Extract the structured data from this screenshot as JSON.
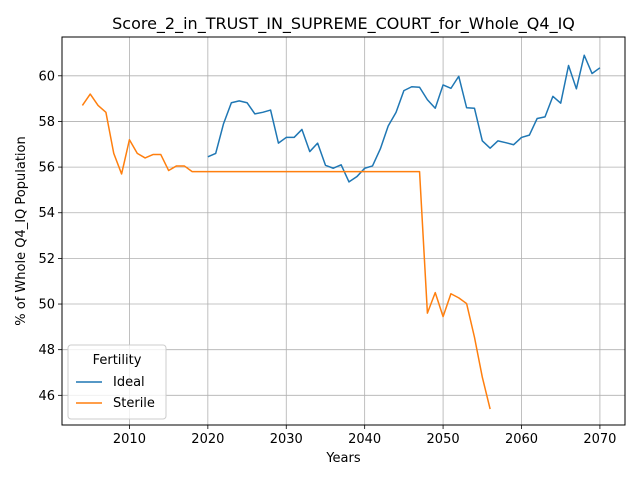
{
  "chart_data": {
    "type": "line",
    "title": "Score_2_in_TRUST_IN_SUPREME_COURT_for_Whole_Q4_IQ",
    "xlabel": "Years",
    "ylabel": "% of Whole Q4_IQ Population",
    "xlim": [
      2001.4,
      2073.2
    ],
    "ylim": [
      44.7,
      61.7
    ],
    "xticks": [
      2010,
      2020,
      2030,
      2040,
      2050,
      2060,
      2070
    ],
    "yticks": [
      46,
      48,
      50,
      52,
      54,
      56,
      58,
      60
    ],
    "grid": true,
    "legend": {
      "title": "Fertility",
      "placement": "lower-left"
    },
    "series": [
      {
        "name": "Ideal",
        "color": "#1f77b4",
        "x": [
          2020,
          2021,
          2022,
          2023,
          2024,
          2025,
          2026,
          2027,
          2028,
          2029,
          2030,
          2031,
          2032,
          2033,
          2034,
          2035,
          2036,
          2037,
          2038,
          2039,
          2040,
          2041,
          2042,
          2043,
          2044,
          2045,
          2046,
          2047,
          2048,
          2049,
          2050,
          2051,
          2052,
          2053,
          2054,
          2055,
          2056,
          2057,
          2058,
          2059,
          2060,
          2061,
          2062,
          2063,
          2064,
          2065,
          2066,
          2067,
          2068,
          2069,
          2070
        ],
        "y": [
          56.45,
          56.6,
          57.9,
          58.82,
          58.9,
          58.82,
          58.33,
          58.4,
          58.5,
          57.05,
          57.3,
          57.3,
          57.65,
          56.68,
          57.05,
          56.08,
          55.95,
          56.1,
          55.35,
          55.58,
          55.95,
          56.05,
          56.8,
          57.8,
          58.4,
          59.35,
          59.52,
          59.5,
          58.95,
          58.58,
          59.6,
          59.45,
          59.98,
          58.6,
          58.58,
          57.15,
          56.83,
          57.15,
          57.07,
          56.98,
          57.3,
          57.4,
          58.13,
          58.2,
          59.1,
          58.8,
          60.45,
          59.43,
          60.9,
          60.1,
          60.35
        ]
      },
      {
        "name": "Sterile",
        "color": "#ff7f0e",
        "x": [
          2004,
          2005,
          2006,
          2007,
          2008,
          2009,
          2010,
          2011,
          2012,
          2013,
          2014,
          2015,
          2016,
          2017,
          2018,
          2019,
          2020,
          2021,
          2022,
          2023,
          2024,
          2025,
          2026,
          2027,
          2028,
          2029,
          2030,
          2031,
          2032,
          2033,
          2034,
          2035,
          2036,
          2037,
          2038,
          2039,
          2040,
          2041,
          2042,
          2043,
          2044,
          2045,
          2046,
          2047,
          2048,
          2049,
          2050,
          2051,
          2052,
          2053,
          2054,
          2055,
          2056
        ],
        "y": [
          58.7,
          59.2,
          58.7,
          58.4,
          56.6,
          55.7,
          57.2,
          56.6,
          56.4,
          56.55,
          56.55,
          55.85,
          56.05,
          56.05,
          55.8,
          55.8,
          55.8,
          55.8,
          55.8,
          55.8,
          55.8,
          55.8,
          55.8,
          55.8,
          55.8,
          55.8,
          55.8,
          55.8,
          55.8,
          55.8,
          55.8,
          55.8,
          55.8,
          55.8,
          55.8,
          55.8,
          55.8,
          55.8,
          55.8,
          55.8,
          55.8,
          55.8,
          55.8,
          55.8,
          49.6,
          50.5,
          49.45,
          50.45,
          50.27,
          50.02,
          48.55,
          46.8,
          45.4
        ]
      }
    ]
  }
}
